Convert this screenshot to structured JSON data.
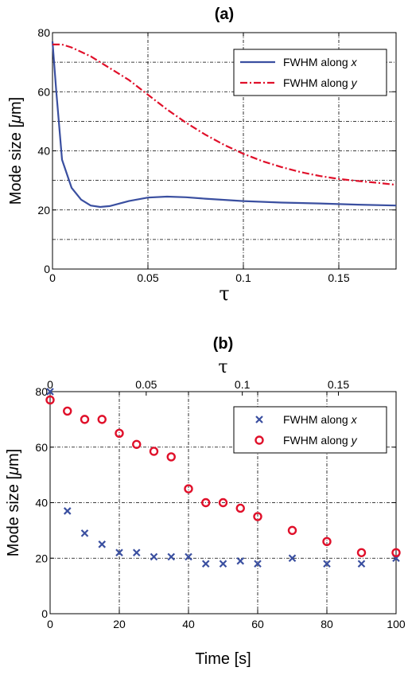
{
  "chart_data": [
    {
      "type": "line",
      "title": "(a)",
      "xlabel": "τ",
      "ylabel_prefix": "Mode size [",
      "ylabel_unit_mu": "μ",
      "ylabel_suffix": "m]",
      "xlim": [
        0,
        0.18
      ],
      "ylim": [
        0,
        80
      ],
      "xticks": [
        0,
        0.05,
        0.1,
        0.15
      ],
      "xtick_labels": [
        "0",
        "0.05",
        "0.1",
        "0.15"
      ],
      "yticks": [
        0,
        20,
        40,
        60,
        80
      ],
      "ytick_labels": [
        "0",
        "20",
        "40",
        "60",
        "80"
      ],
      "grid_y": [
        10,
        20,
        30,
        40,
        50,
        60,
        70
      ],
      "grid_x": [
        0.05,
        0.1,
        0.15
      ],
      "grid": true,
      "legend_position": "top-right",
      "series": [
        {
          "name_prefix": "FWHM along ",
          "name_var": "x",
          "color": "#3a4fa0",
          "style": "solid",
          "x": [
            0,
            0.002,
            0.005,
            0.01,
            0.015,
            0.02,
            0.025,
            0.03,
            0.04,
            0.05,
            0.06,
            0.07,
            0.08,
            0.1,
            0.12,
            0.14,
            0.16,
            0.18
          ],
          "y": [
            77,
            60,
            37,
            27.5,
            23.5,
            21.5,
            21,
            21.3,
            23,
            24.2,
            24.5,
            24.3,
            23.8,
            23,
            22.5,
            22.2,
            21.8,
            21.5
          ]
        },
        {
          "name_prefix": "FWHM along ",
          "name_var": "y",
          "color": "#e0102a",
          "style": "dashdot",
          "x": [
            0,
            0.005,
            0.01,
            0.02,
            0.03,
            0.04,
            0.05,
            0.06,
            0.07,
            0.08,
            0.09,
            0.1,
            0.11,
            0.12,
            0.13,
            0.14,
            0.15,
            0.16,
            0.17,
            0.18
          ],
          "y": [
            76,
            76,
            75,
            72,
            68,
            64,
            59,
            54,
            49.5,
            45.5,
            42,
            39,
            36.5,
            34.5,
            32.8,
            31.5,
            30.5,
            29.8,
            29.2,
            28.5
          ]
        }
      ]
    },
    {
      "type": "scatter",
      "title": "(b)",
      "xlabel": "Time [s]",
      "top_xlabel": "τ",
      "ylabel_prefix": "Mode size [",
      "ylabel_unit_mu": "μ",
      "ylabel_suffix": "m]",
      "xlim": [
        0,
        100
      ],
      "ylim": [
        0,
        80
      ],
      "xticks": [
        0,
        20,
        40,
        60,
        80,
        100
      ],
      "xtick_labels": [
        "0",
        "20",
        "40",
        "60",
        "80",
        "100"
      ],
      "yticks": [
        0,
        20,
        40,
        60,
        80
      ],
      "ytick_labels": [
        "0",
        "20",
        "40",
        "60",
        "80"
      ],
      "top_xticks": [
        0,
        0.05,
        0.1,
        0.15
      ],
      "top_xtick_labels": [
        "0",
        "0.05",
        "0.1",
        "0.15"
      ],
      "top_xlim": [
        0,
        0.18
      ],
      "grid": true,
      "legend_position": "top-right",
      "series": [
        {
          "name_prefix": "FWHM along ",
          "name_var": "x",
          "color": "#3a4fa0",
          "marker": "x",
          "x": [
            0,
            5,
            10,
            15,
            20,
            25,
            30,
            35,
            40,
            45,
            50,
            55,
            60,
            70,
            80,
            90,
            100
          ],
          "y": [
            80,
            37,
            29,
            25,
            22,
            22,
            20.5,
            20.5,
            20.5,
            18,
            18,
            19,
            18,
            20,
            18,
            18,
            20
          ]
        },
        {
          "name_prefix": "FWHM along ",
          "name_var": "y",
          "color": "#e0102a",
          "marker": "circle",
          "x": [
            0,
            5,
            10,
            15,
            20,
            25,
            30,
            35,
            40,
            45,
            50,
            55,
            60,
            70,
            80,
            90,
            100
          ],
          "y": [
            77,
            73,
            70,
            70,
            65,
            61,
            58.5,
            56.5,
            45,
            40,
            40,
            38,
            35,
            30,
            26,
            22,
            22
          ]
        }
      ]
    }
  ]
}
